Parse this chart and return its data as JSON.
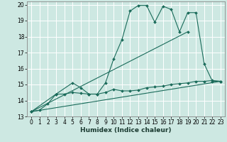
{
  "xlabel": "Humidex (Indice chaleur)",
  "xlim": [
    -0.5,
    23.5
  ],
  "ylim": [
    13,
    20.2
  ],
  "yticks": [
    13,
    14,
    15,
    16,
    17,
    18,
    19,
    20
  ],
  "xticks": [
    0,
    1,
    2,
    3,
    4,
    5,
    6,
    7,
    8,
    9,
    10,
    11,
    12,
    13,
    14,
    15,
    16,
    17,
    18,
    19,
    20,
    21,
    22,
    23
  ],
  "bg_color": "#cde8e2",
  "grid_color": "#ffffff",
  "line_color": "#1a6b5a",
  "line1_x": [
    0,
    1,
    2,
    3,
    5,
    6,
    7,
    8,
    9,
    10,
    11,
    12,
    13,
    14,
    15,
    16,
    17,
    18,
    19,
    20,
    21,
    22,
    23
  ],
  "line1_y": [
    13.3,
    13.4,
    13.8,
    14.4,
    15.1,
    14.8,
    14.4,
    14.4,
    15.1,
    16.6,
    17.8,
    19.6,
    19.95,
    19.95,
    18.9,
    19.9,
    19.7,
    18.3,
    19.5,
    19.5,
    16.3,
    15.2,
    15.2
  ],
  "line2_x": [
    0,
    19
  ],
  "line2_y": [
    13.3,
    18.3
  ],
  "line3_x": [
    0,
    23
  ],
  "line3_y": [
    13.3,
    15.2
  ],
  "line4_x": [
    0,
    3,
    4,
    5,
    6,
    7,
    8,
    9,
    10,
    11,
    12,
    13,
    14,
    15,
    16,
    17,
    18,
    19,
    20,
    21,
    22,
    23
  ],
  "line4_y": [
    13.3,
    14.4,
    14.4,
    14.5,
    14.45,
    14.4,
    14.4,
    14.5,
    14.7,
    14.6,
    14.6,
    14.65,
    14.8,
    14.85,
    14.9,
    15.0,
    15.05,
    15.1,
    15.2,
    15.2,
    15.25,
    15.2
  ]
}
